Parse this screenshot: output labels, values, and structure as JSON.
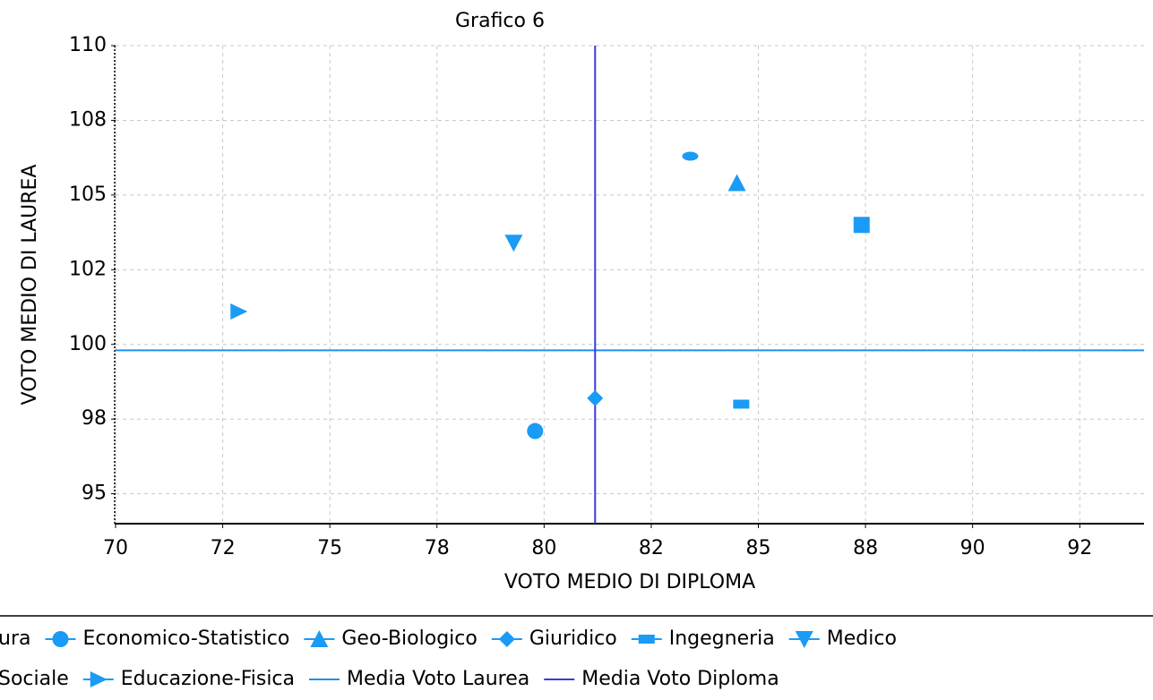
{
  "chart_data": {
    "type": "scatter",
    "title": "Grafico 6",
    "x_label": "VOTO MEDIO DI DIPLOMA",
    "y_label": "VOTO MEDIO DI LAUREA",
    "xlim": [
      70,
      94
    ],
    "ylim": [
      94,
      110
    ],
    "xticks": [
      70,
      {
        "value": 72.5,
        "label": "72"
      },
      75,
      {
        "value": 77.5,
        "label": "78"
      },
      80,
      {
        "value": 82.5,
        "label": "82"
      },
      85,
      {
        "value": 87.5,
        "label": "88"
      },
      90,
      {
        "value": 92.5,
        "label": "92"
      }
    ],
    "yticks": [
      95,
      {
        "value": 97.5,
        "label": "98"
      },
      100,
      {
        "value": 102.5,
        "label": "102"
      },
      105,
      {
        "value": 107.5,
        "label": "108"
      },
      110
    ],
    "grid": true,
    "legend": "bottom",
    "series": [
      {
        "name": "ura",
        "color": "#1a9bf5",
        "marker": "square",
        "x": [
          87.41
        ],
        "values": [
          104.0
        ]
      },
      {
        "name": "Economico-Statistico",
        "color": "#1a9bf5",
        "marker": "circle",
        "x": [
          79.79
        ],
        "values": [
          97.1
        ]
      },
      {
        "name": "Geo-Biologico",
        "color": "#1a9bf5",
        "marker": "triangle-up",
        "x": [
          84.5
        ],
        "values": [
          105.4
        ]
      },
      {
        "name": "Giuridico",
        "color": "#1a9bf5",
        "marker": "diamond",
        "x": [
          81.19
        ],
        "values": [
          98.2
        ]
      },
      {
        "name": "Ingegneria",
        "color": "#1a9bf5",
        "marker": "rect",
        "x": [
          84.6
        ],
        "values": [
          98.0
        ]
      },
      {
        "name": "Medico",
        "color": "#1a9bf5",
        "marker": "triangle-down",
        "x": [
          79.29
        ],
        "values": [
          103.4
        ]
      },
      {
        "name": "Sociale",
        "color": "#1a9bf5",
        "marker": "ellipse",
        "x": [
          83.41
        ],
        "values": [
          106.3
        ]
      },
      {
        "name": "Educazione-Fisica",
        "color": "#1a9bf5",
        "marker": "triangle-right",
        "x": [
          72.87
        ],
        "values": [
          101.1
        ]
      }
    ],
    "reference_lines": [
      {
        "name": "Media Voto Laurea",
        "axis": "y",
        "value": 99.8,
        "color": "#1e90f0"
      },
      {
        "name": "Media Voto Diploma",
        "axis": "x",
        "value": 81.19,
        "color": "#3a3ae0"
      }
    ]
  }
}
